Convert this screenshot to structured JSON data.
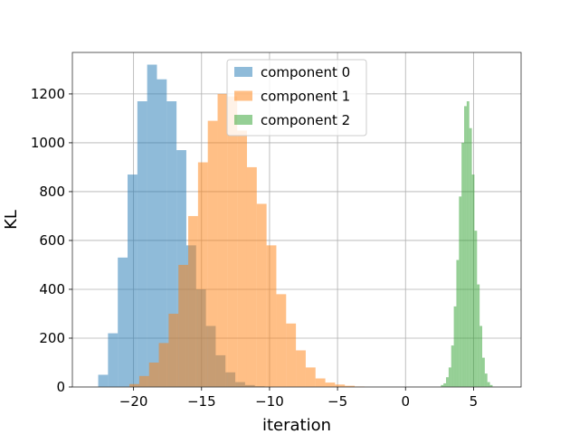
{
  "chart_data": {
    "type": "bar",
    "title": "",
    "xlabel": "iteration",
    "ylabel": "KL",
    "xlim": [
      -24.5,
      8.5
    ],
    "ylim": [
      0,
      1370
    ],
    "grid": true,
    "legend": "top-center",
    "xticks": [
      -20,
      -15,
      -10,
      -5,
      0,
      5
    ],
    "xtick_labels": [
      "−20",
      "−15",
      "−10",
      "−5",
      "0",
      "5"
    ],
    "yticks": [
      0,
      200,
      400,
      600,
      800,
      1000,
      1200
    ],
    "ytick_labels": [
      "0",
      "200",
      "400",
      "600",
      "800",
      "1000",
      "1200"
    ],
    "series": [
      {
        "name": "component 0",
        "color": "#1f77b4",
        "bin_start": -22.6,
        "bin_width": 0.72,
        "values": [
          50,
          220,
          530,
          870,
          1170,
          1320,
          1260,
          1170,
          970,
          580,
          400,
          250,
          130,
          60,
          20,
          8,
          3,
          1
        ]
      },
      {
        "name": "component 1",
        "color": "#ff7f0e",
        "bin_start": -20.3,
        "bin_width": 0.72,
        "values": [
          12,
          45,
          100,
          180,
          300,
          500,
          700,
          920,
          1090,
          1200,
          1190,
          1050,
          900,
          750,
          580,
          380,
          260,
          150,
          80,
          35,
          18,
          10,
          5,
          2
        ]
      },
      {
        "name": "component 2",
        "color": "#2ca02c",
        "bin_start": 2.6,
        "bin_width": 0.19,
        "values": [
          8,
          15,
          40,
          80,
          170,
          330,
          520,
          780,
          1000,
          1150,
          1170,
          1060,
          870,
          640,
          420,
          250,
          120,
          55,
          20,
          8
        ]
      }
    ]
  }
}
